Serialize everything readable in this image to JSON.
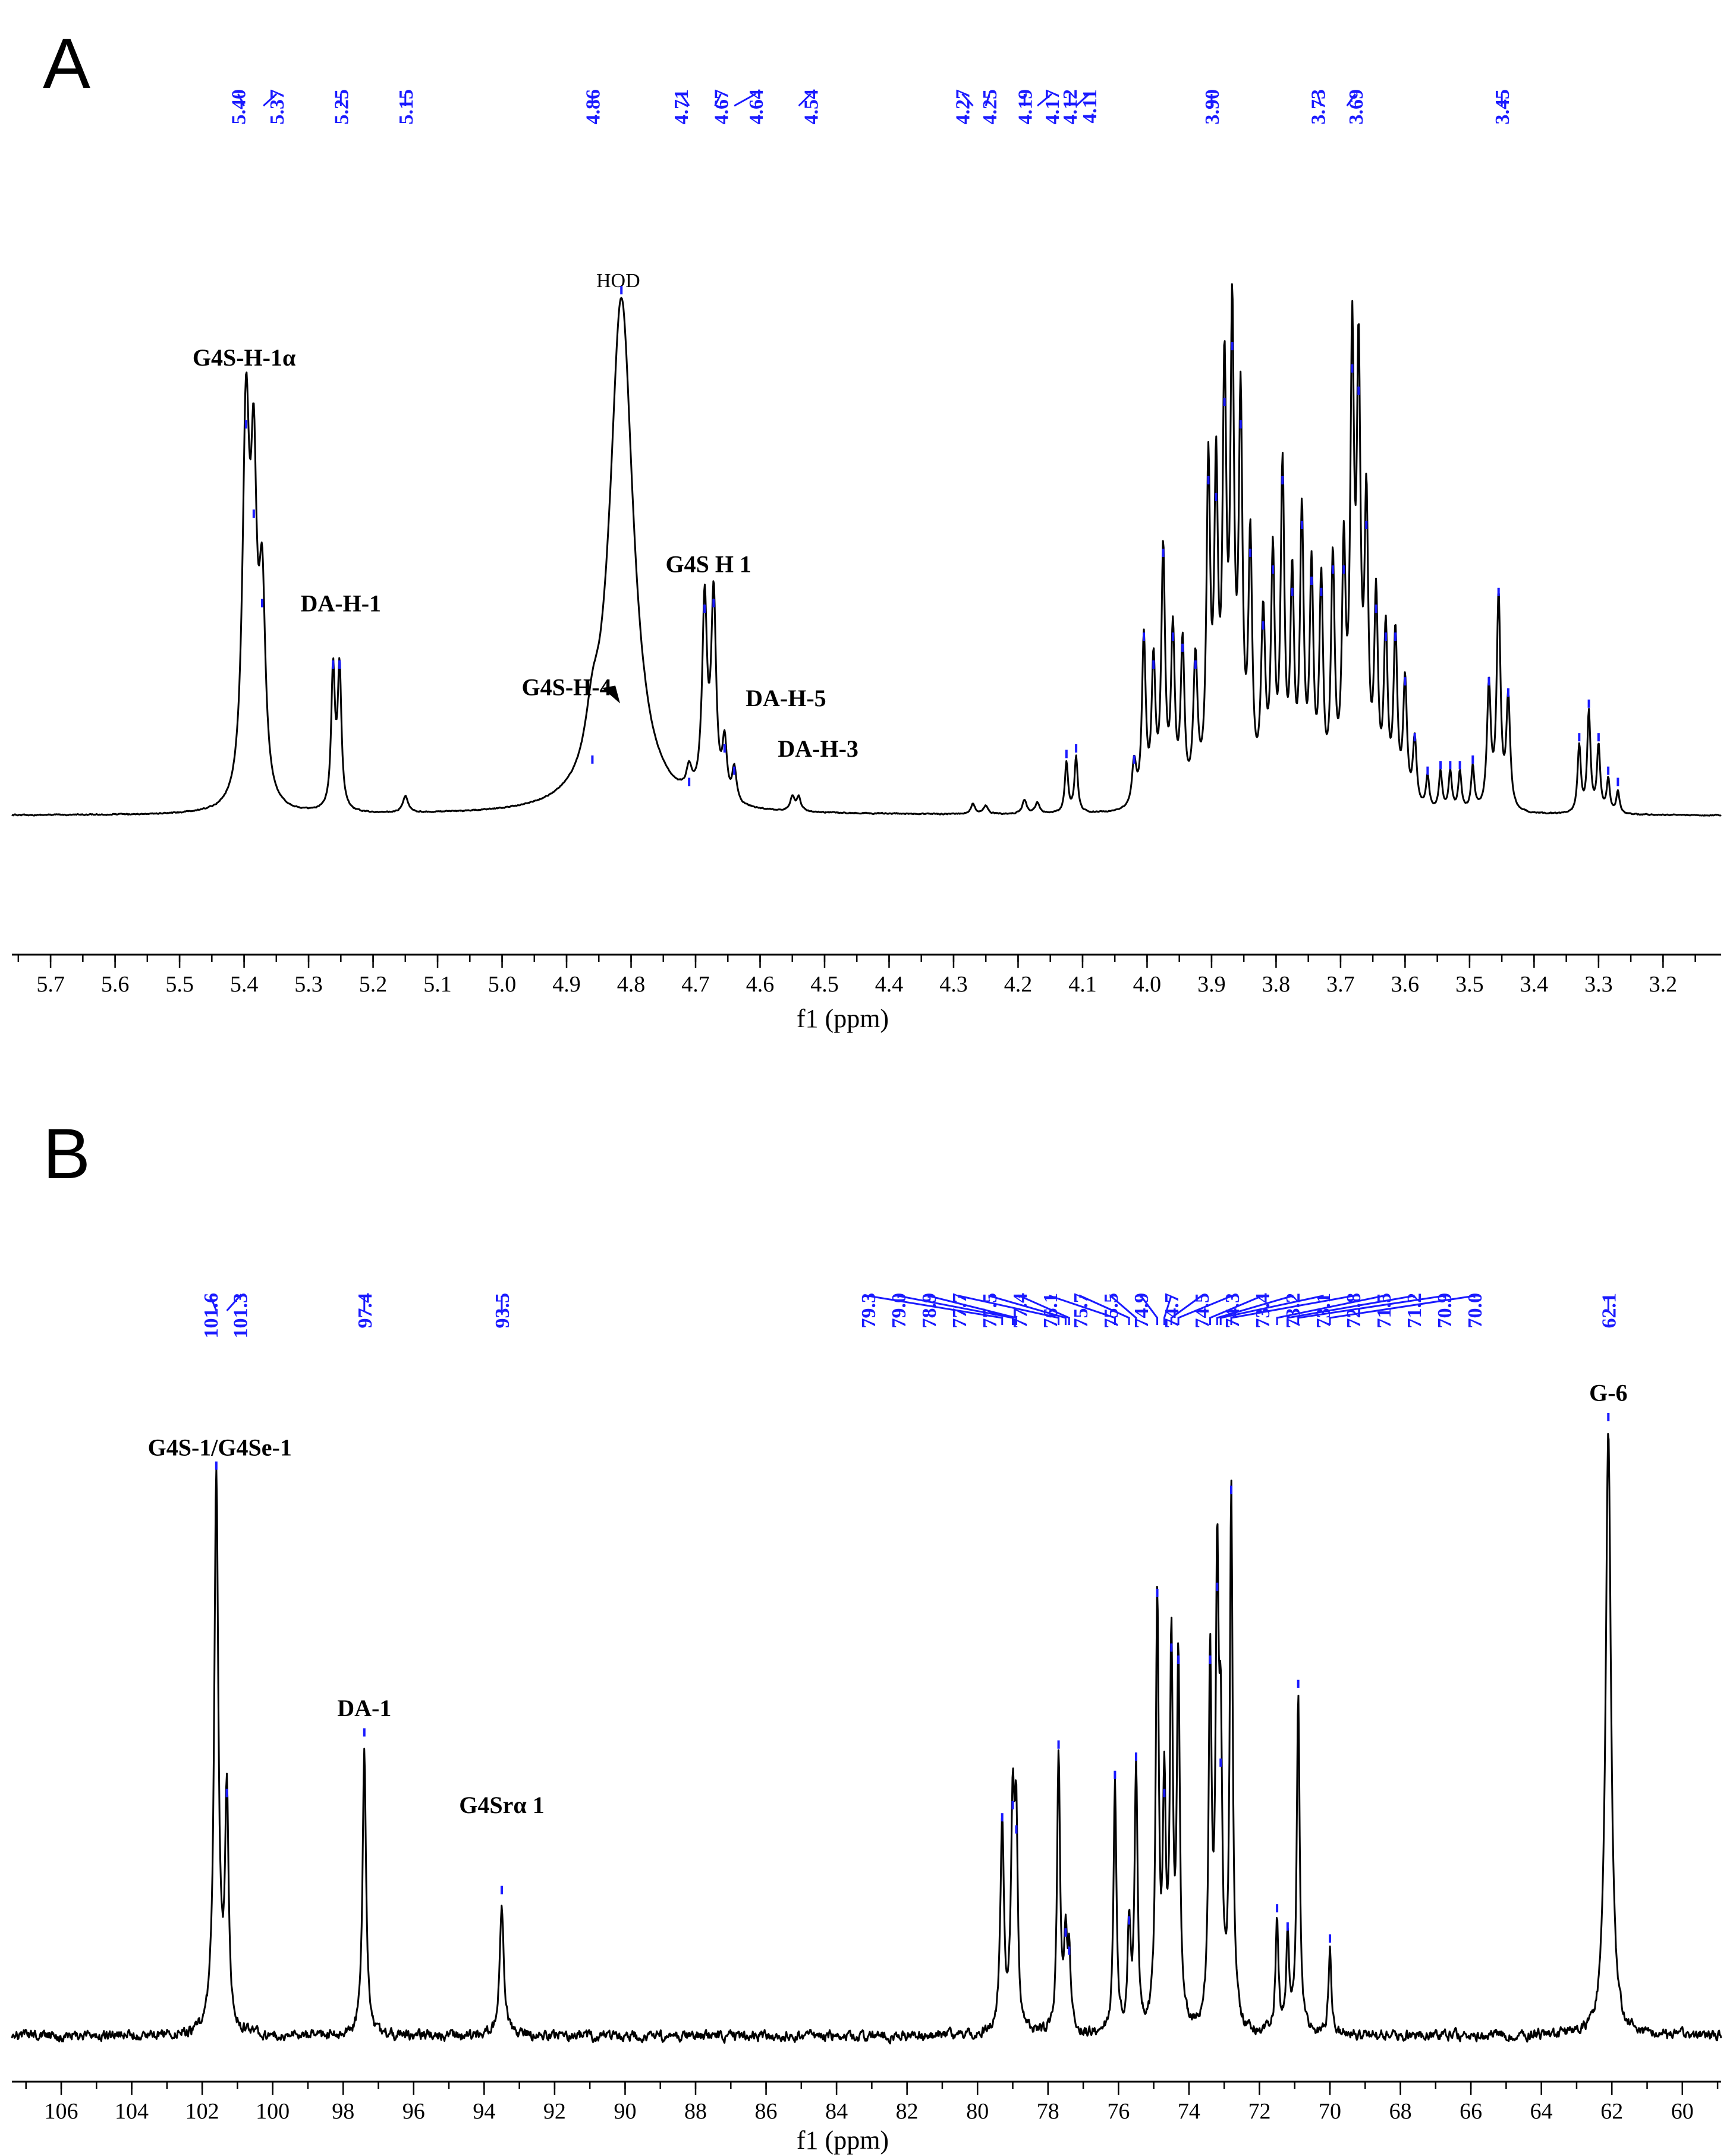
{
  "chart_data": [
    {
      "panel": "A",
      "type": "line",
      "xlabel": "f1 (ppm)",
      "xlim": [
        5.76,
        3.11
      ],
      "x_ticks": [
        5.7,
        5.6,
        5.5,
        5.4,
        5.3,
        5.2,
        5.1,
        5.0,
        4.9,
        4.8,
        4.7,
        4.6,
        4.5,
        4.4,
        4.3,
        4.2,
        4.1,
        4.0,
        3.9,
        3.8,
        3.7,
        3.6,
        3.5,
        3.4,
        3.3,
        3.2
      ],
      "shift_labels": [
        "5.40",
        "5.37",
        "5.25",
        "5.15",
        "4.86",
        "4.71",
        "4.67",
        "4.64",
        "4.54",
        "4.27",
        "4.25",
        "4.19",
        "4.17",
        "4.12",
        "4.11",
        "3.90",
        "3.73",
        "3.69",
        "3.45"
      ],
      "annotations": [
        {
          "text": "G4S-H-1α",
          "x": 5.4,
          "y": 0.78
        },
        {
          "text": "DA-H-1",
          "x": 5.25,
          "y": 0.34
        },
        {
          "text": "HOD",
          "x": 4.82,
          "y": 0.92
        },
        {
          "text": "G4S-H-4",
          "x": 4.9,
          "y": 0.19
        },
        {
          "text": "G4S H 1",
          "x": 4.68,
          "y": 0.41
        },
        {
          "text": "DA-H-5",
          "x": 4.56,
          "y": 0.17
        },
        {
          "text": "DA-H-3",
          "x": 4.51,
          "y": 0.08
        }
      ],
      "peaks": [
        {
          "x": 5.397,
          "y": 0.68,
          "w": 0.0065
        },
        {
          "x": 5.385,
          "y": 0.52,
          "w": 0.0055
        },
        {
          "x": 5.372,
          "y": 0.36,
          "w": 0.006
        },
        {
          "x": 5.262,
          "y": 0.25,
          "w": 0.0035
        },
        {
          "x": 5.252,
          "y": 0.25,
          "w": 0.0035
        },
        {
          "x": 5.15,
          "y": 0.03,
          "w": 0.005
        },
        {
          "x": 4.86,
          "y": 0.08,
          "w": 0.012
        },
        {
          "x": 4.815,
          "y": 0.92,
          "w": 0.022
        },
        {
          "x": 4.71,
          "y": 0.04,
          "w": 0.005
        },
        {
          "x": 4.686,
          "y": 0.35,
          "w": 0.0045
        },
        {
          "x": 4.672,
          "y": 0.36,
          "w": 0.0045
        },
        {
          "x": 4.655,
          "y": 0.1,
          "w": 0.004
        },
        {
          "x": 4.64,
          "y": 0.06,
          "w": 0.004
        },
        {
          "x": 4.55,
          "y": 0.025,
          "w": 0.004
        },
        {
          "x": 4.54,
          "y": 0.025,
          "w": 0.004
        },
        {
          "x": 4.27,
          "y": 0.018,
          "w": 0.004
        },
        {
          "x": 4.25,
          "y": 0.015,
          "w": 0.004
        },
        {
          "x": 4.19,
          "y": 0.025,
          "w": 0.004
        },
        {
          "x": 4.17,
          "y": 0.02,
          "w": 0.004
        },
        {
          "x": 4.125,
          "y": 0.09,
          "w": 0.003
        },
        {
          "x": 4.11,
          "y": 0.1,
          "w": 0.003
        },
        {
          "x": 4.02,
          "y": 0.08,
          "w": 0.004
        },
        {
          "x": 4.005,
          "y": 0.3,
          "w": 0.0035
        },
        {
          "x": 3.99,
          "y": 0.25,
          "w": 0.0035
        },
        {
          "x": 3.975,
          "y": 0.45,
          "w": 0.0035
        },
        {
          "x": 3.96,
          "y": 0.3,
          "w": 0.0035
        },
        {
          "x": 3.945,
          "y": 0.28,
          "w": 0.0035
        },
        {
          "x": 3.925,
          "y": 0.25,
          "w": 0.004
        },
        {
          "x": 3.905,
          "y": 0.58,
          "w": 0.0035
        },
        {
          "x": 3.893,
          "y": 0.55,
          "w": 0.0035
        },
        {
          "x": 3.88,
          "y": 0.72,
          "w": 0.0035
        },
        {
          "x": 3.868,
          "y": 0.82,
          "w": 0.0035
        },
        {
          "x": 3.855,
          "y": 0.68,
          "w": 0.0035
        },
        {
          "x": 3.84,
          "y": 0.45,
          "w": 0.0035
        },
        {
          "x": 3.82,
          "y": 0.32,
          "w": 0.004
        },
        {
          "x": 3.805,
          "y": 0.42,
          "w": 0.0035
        },
        {
          "x": 3.79,
          "y": 0.58,
          "w": 0.0035
        },
        {
          "x": 3.775,
          "y": 0.38,
          "w": 0.0035
        },
        {
          "x": 3.76,
          "y": 0.5,
          "w": 0.0035
        },
        {
          "x": 3.745,
          "y": 0.4,
          "w": 0.0035
        },
        {
          "x": 3.73,
          "y": 0.38,
          "w": 0.0035
        },
        {
          "x": 3.712,
          "y": 0.42,
          "w": 0.0035
        },
        {
          "x": 3.695,
          "y": 0.42,
          "w": 0.0035
        },
        {
          "x": 3.682,
          "y": 0.78,
          "w": 0.0035
        },
        {
          "x": 3.672,
          "y": 0.74,
          "w": 0.0035
        },
        {
          "x": 3.66,
          "y": 0.5,
          "w": 0.0035
        },
        {
          "x": 3.645,
          "y": 0.35,
          "w": 0.0035
        },
        {
          "x": 3.63,
          "y": 0.3,
          "w": 0.0035
        },
        {
          "x": 3.615,
          "y": 0.3,
          "w": 0.0035
        },
        {
          "x": 3.6,
          "y": 0.22,
          "w": 0.0035
        },
        {
          "x": 3.585,
          "y": 0.12,
          "w": 0.0035
        },
        {
          "x": 3.565,
          "y": 0.06,
          "w": 0.003
        },
        {
          "x": 3.545,
          "y": 0.07,
          "w": 0.003
        },
        {
          "x": 3.53,
          "y": 0.07,
          "w": 0.003
        },
        {
          "x": 3.515,
          "y": 0.07,
          "w": 0.003
        },
        {
          "x": 3.495,
          "y": 0.08,
          "w": 0.003
        },
        {
          "x": 3.47,
          "y": 0.22,
          "w": 0.0035
        },
        {
          "x": 3.455,
          "y": 0.38,
          "w": 0.0035
        },
        {
          "x": 3.44,
          "y": 0.2,
          "w": 0.0035
        },
        {
          "x": 3.33,
          "y": 0.12,
          "w": 0.003
        },
        {
          "x": 3.315,
          "y": 0.18,
          "w": 0.003
        },
        {
          "x": 3.3,
          "y": 0.12,
          "w": 0.003
        },
        {
          "x": 3.285,
          "y": 0.06,
          "w": 0.003
        },
        {
          "x": 3.27,
          "y": 0.04,
          "w": 0.003
        }
      ]
    },
    {
      "panel": "B",
      "type": "line",
      "xlabel": "f1 (ppm)",
      "xlim": [
        107.4,
        58.9
      ],
      "x_ticks": [
        106,
        104,
        102,
        100,
        98,
        96,
        94,
        92,
        90,
        88,
        86,
        84,
        82,
        80,
        78,
        76,
        74,
        72,
        70,
        68,
        66,
        64,
        62,
        60
      ],
      "shift_labels_left": [
        "101.6",
        "101.3",
        "97.4",
        "93.5"
      ],
      "shift_labels_group": [
        "79.3",
        "79.0",
        "78.9",
        "77.7",
        "77.5",
        "77.4",
        "76.1",
        "75.7",
        "75.5",
        "74.9",
        "74.7",
        "74.5",
        "74.3",
        "73.4",
        "73.2",
        "73.1",
        "72.8",
        "71.5",
        "71.2",
        "70.9",
        "70.0"
      ],
      "shift_labels_right": [
        "62.1"
      ],
      "annotations": [
        {
          "text": "G4S-1/G4Se-1",
          "x": 101.5,
          "y": 0.93
        },
        {
          "text": "DA-1",
          "x": 97.4,
          "y": 0.5
        },
        {
          "text": "G4Srα 1",
          "x": 93.5,
          "y": 0.34
        },
        {
          "text": "G-6",
          "x": 62.1,
          "y": 1.02
        }
      ],
      "peaks": [
        {
          "x": 101.6,
          "y": 0.92,
          "w": 0.07
        },
        {
          "x": 101.3,
          "y": 0.38,
          "w": 0.06
        },
        {
          "x": 97.4,
          "y": 0.48,
          "w": 0.06
        },
        {
          "x": 93.5,
          "y": 0.22,
          "w": 0.07
        },
        {
          "x": 79.3,
          "y": 0.34,
          "w": 0.06
        },
        {
          "x": 79.0,
          "y": 0.36,
          "w": 0.06
        },
        {
          "x": 78.9,
          "y": 0.32,
          "w": 0.05
        },
        {
          "x": 77.7,
          "y": 0.46,
          "w": 0.05
        },
        {
          "x": 77.5,
          "y": 0.15,
          "w": 0.05
        },
        {
          "x": 77.4,
          "y": 0.12,
          "w": 0.05
        },
        {
          "x": 76.1,
          "y": 0.41,
          "w": 0.05
        },
        {
          "x": 75.7,
          "y": 0.17,
          "w": 0.05
        },
        {
          "x": 75.5,
          "y": 0.44,
          "w": 0.05
        },
        {
          "x": 74.9,
          "y": 0.71,
          "w": 0.05
        },
        {
          "x": 74.7,
          "y": 0.38,
          "w": 0.05
        },
        {
          "x": 74.5,
          "y": 0.62,
          "w": 0.05
        },
        {
          "x": 74.3,
          "y": 0.6,
          "w": 0.05
        },
        {
          "x": 73.4,
          "y": 0.6,
          "w": 0.05
        },
        {
          "x": 73.2,
          "y": 0.72,
          "w": 0.05
        },
        {
          "x": 73.1,
          "y": 0.43,
          "w": 0.05
        },
        {
          "x": 72.8,
          "y": 0.88,
          "w": 0.05
        },
        {
          "x": 71.5,
          "y": 0.19,
          "w": 0.05
        },
        {
          "x": 71.2,
          "y": 0.16,
          "w": 0.05
        },
        {
          "x": 70.9,
          "y": 0.56,
          "w": 0.05
        },
        {
          "x": 70.0,
          "y": 0.14,
          "w": 0.05
        },
        {
          "x": 62.1,
          "y": 1.0,
          "w": 0.09
        }
      ]
    }
  ]
}
